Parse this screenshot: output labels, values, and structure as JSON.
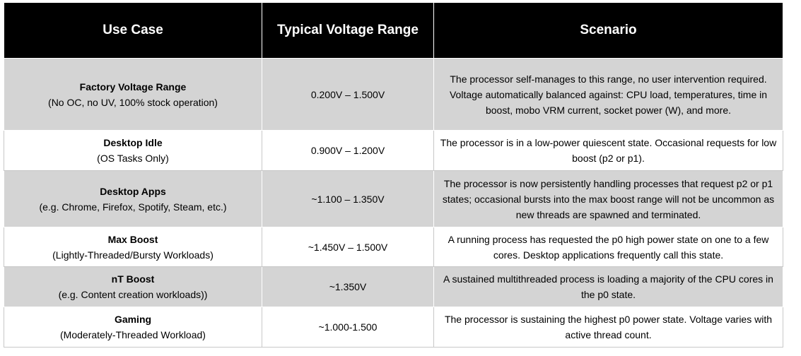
{
  "table": {
    "headers": [
      "Use Case",
      "Typical Voltage Range",
      "Scenario"
    ],
    "rows": [
      {
        "use_case_title": "Factory Voltage Range",
        "use_case_sub": "(No OC, no UV, 100% stock operation)",
        "voltage": "0.200V – 1.500V",
        "scenario": "The processor self-manages to this range, no user intervention required.  Voltage automatically balanced against: CPU load, temperatures, time in boost, mobo VRM current, socket power (W), and more."
      },
      {
        "use_case_title": "Desktop Idle",
        "use_case_sub": "(OS Tasks Only)",
        "voltage": "0.900V – 1.200V",
        "scenario": "The processor is in a low-power quiescent state. Occasional requests for low boost (p2 or p1)."
      },
      {
        "use_case_title": "Desktop Apps",
        "use_case_sub": "(e.g. Chrome, Firefox, Spotify, Steam, etc.)",
        "voltage": "~1.100 – 1.350V",
        "scenario": "The processor is now persistently handling processes that request p2 or p1 states; occasional bursts into the max boost range will not be uncommon as new threads are spawned and terminated."
      },
      {
        "use_case_title": "Max Boost",
        "use_case_sub": "(Lightly-Threaded/Bursty Workloads)",
        "voltage": "~1.450V – 1.500V",
        "scenario": "A running process has requested the p0 high power state on one to a few cores. Desktop applications frequently call this state."
      },
      {
        "use_case_title": "nT Boost",
        "use_case_sub": "(e.g. Content creation workloads))",
        "voltage": "~1.350V",
        "scenario": "A sustained multithreaded process is loading a majority of the CPU cores in the p0 state."
      },
      {
        "use_case_title": "Gaming",
        "use_case_sub": "(Moderately-Threaded Workload)",
        "voltage": "~1.000-1.500",
        "scenario": "The processor is sustaining the highest p0 power state. Voltage varies with active thread count."
      }
    ]
  },
  "colors": {
    "header_bg": "#000000",
    "header_text": "#ffffff",
    "shaded_row_bg": "#d4d4d4",
    "plain_row_bg": "#ffffff"
  }
}
